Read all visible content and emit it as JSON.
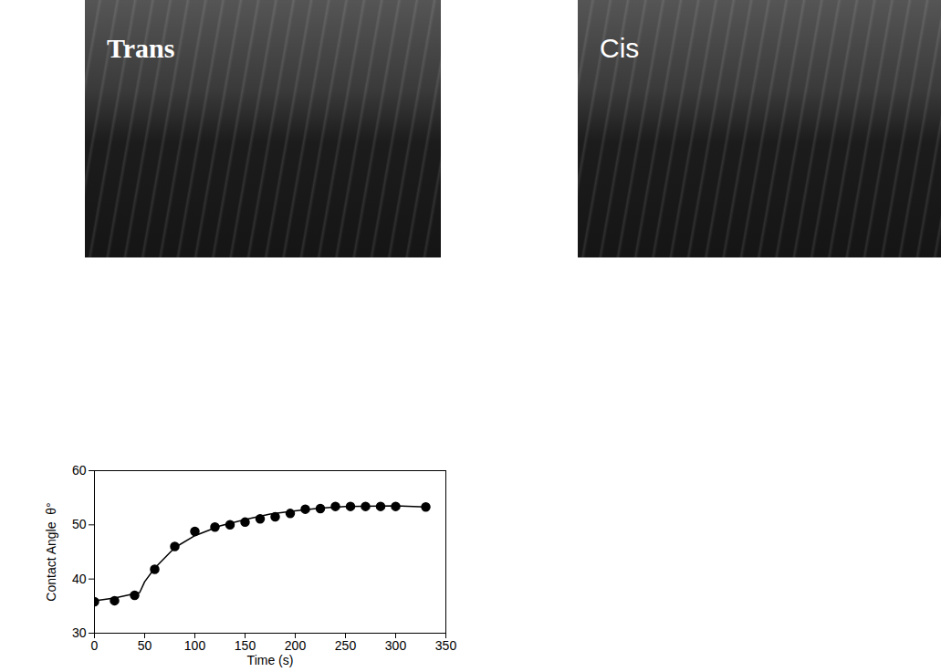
{
  "images": [
    {
      "label": "Trans"
    },
    {
      "label": "Cis"
    }
  ],
  "chart_data": {
    "type": "scatter",
    "x_label": "Time (s)",
    "y_label": "Contact Angle  θ°",
    "xlim": [
      0,
      350
    ],
    "xticks": [
      0,
      50,
      100,
      150,
      200,
      250,
      300,
      350
    ],
    "ylim": [
      30,
      60
    ],
    "yticks": [
      30,
      40,
      50,
      60
    ],
    "grid": false,
    "series": [
      {
        "type": "scatter",
        "marker": "circle",
        "color": "#000000",
        "x": [
          0,
          20,
          40,
          60,
          80,
          100,
          120,
          135,
          150,
          165,
          180,
          195,
          210,
          225,
          240,
          255,
          270,
          285,
          300,
          330
        ],
        "values": [
          35.8,
          36,
          37,
          41.8,
          46,
          48.8,
          49.6,
          50,
          50.5,
          51.1,
          51.5,
          52.1,
          52.9,
          53,
          53.4,
          53.4,
          53.4,
          53.4,
          53.4,
          53.3
        ]
      },
      {
        "type": "line",
        "line_style": "solid",
        "color": "#000000",
        "x": [
          0,
          20,
          45,
          50,
          60,
          80,
          100,
          125,
          150,
          175,
          200,
          225,
          250,
          300,
          330
        ],
        "values": [
          36,
          36.5,
          37.5,
          39.5,
          42,
          45.8,
          48,
          49.8,
          51,
          52,
          52.6,
          53.1,
          53.4,
          53.5,
          53.3
        ]
      }
    ]
  }
}
